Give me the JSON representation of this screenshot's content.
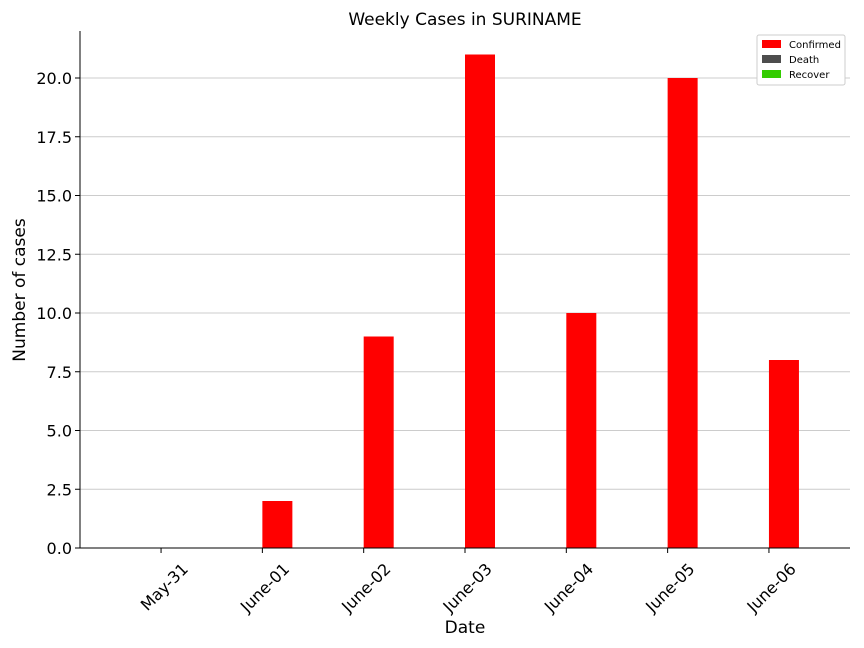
{
  "chart_data": {
    "type": "bar",
    "title": "Weekly Cases in SURINAME",
    "xlabel": "Date",
    "ylabel": "Number of cases",
    "categories": [
      "May-31",
      "June-01",
      "June-02",
      "June-03",
      "June-04",
      "June-05",
      "June-06"
    ],
    "series": [
      {
        "name": "Confirmed",
        "color": "#ff0000",
        "values": [
          0,
          2,
          9,
          21,
          10,
          20,
          8
        ]
      },
      {
        "name": "Death",
        "color": "#4d4d4d",
        "values": [
          0,
          0,
          0,
          0,
          0,
          0,
          0
        ]
      },
      {
        "name": "Recover",
        "color": "#33cc00",
        "values": [
          0,
          0,
          0,
          0,
          0,
          0,
          0
        ]
      }
    ],
    "ylim": [
      0,
      22
    ],
    "yticks": [
      "0.0",
      "2.5",
      "5.0",
      "7.5",
      "10.0",
      "12.5",
      "15.0",
      "17.5",
      "20.0"
    ],
    "grid": "horizontal",
    "legend": "top-right"
  }
}
